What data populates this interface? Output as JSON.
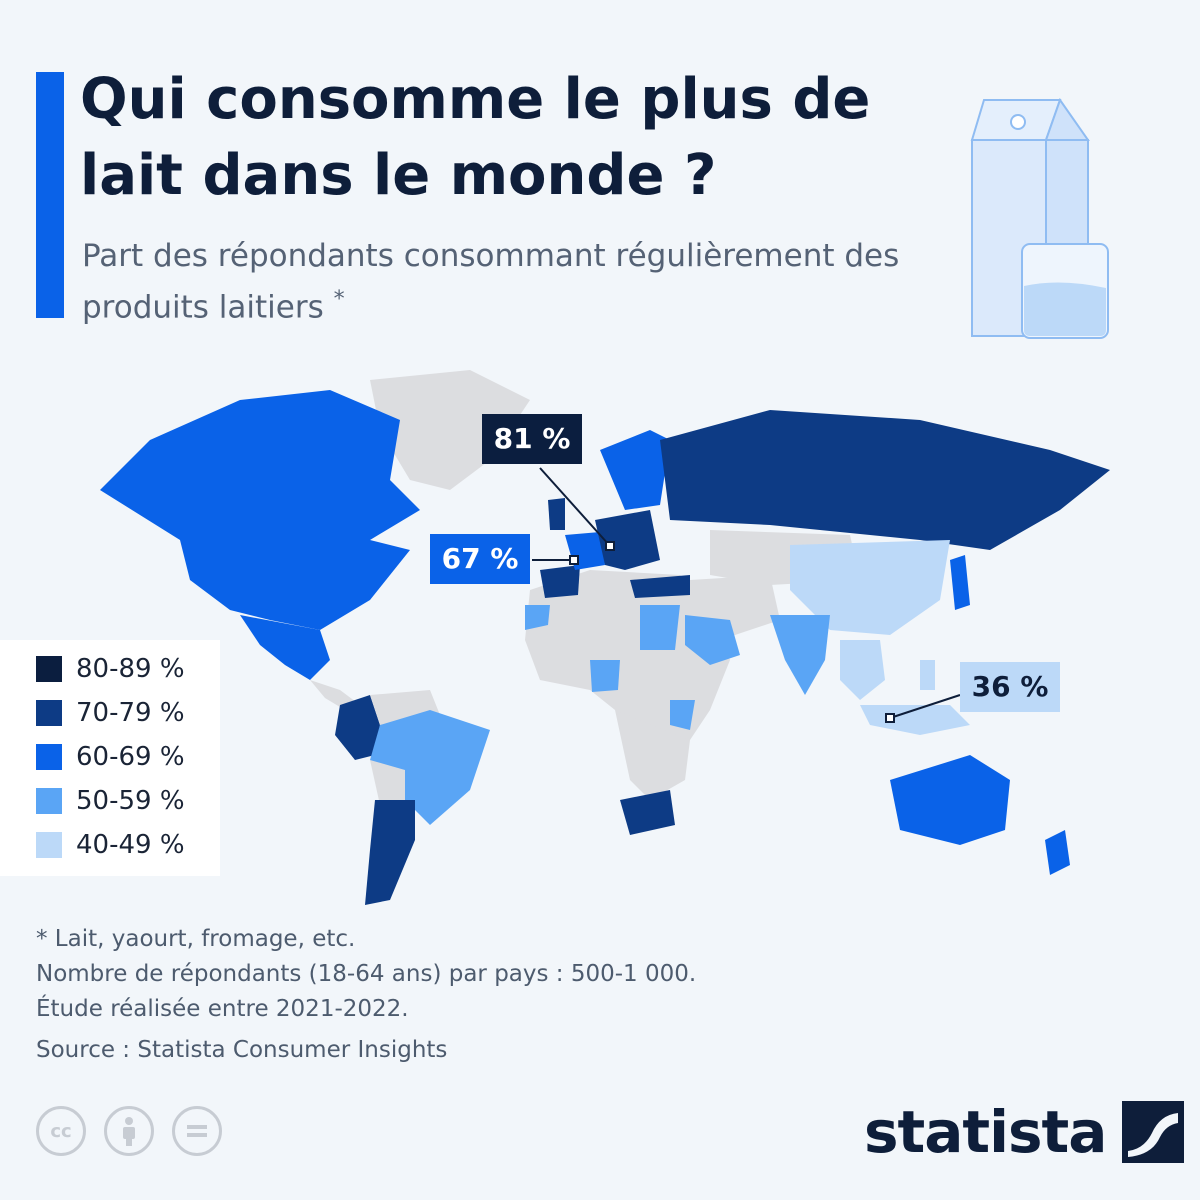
{
  "header": {
    "title": "Qui consomme le plus de lait dans le monde ?",
    "subtitle": "Part des répondants consommant régulièrement des produits laitiers",
    "subtitle_marker": "*"
  },
  "colors": {
    "accent": "#0a62e8",
    "no_data": "#dcdde0",
    "c80_89": "#0b1e3f",
    "c70_79": "#0d3b85",
    "c60_69": "#0a62e8",
    "c50_59": "#5aa5f5",
    "c40_49": "#bcd9f8"
  },
  "legend": {
    "items": [
      {
        "label": "80-89 %",
        "color": "#0b1e3f"
      },
      {
        "label": "70-79 %",
        "color": "#0d3b85"
      },
      {
        "label": "60-69 %",
        "color": "#0a62e8"
      },
      {
        "label": "50-59 %",
        "color": "#5aa5f5"
      },
      {
        "label": "40-49 %",
        "color": "#bcd9f8"
      }
    ]
  },
  "callouts": [
    {
      "label": "81 %",
      "value": 81,
      "color": "#0b1e3f",
      "text_color": "#ffffff"
    },
    {
      "label": "67 %",
      "value": 67,
      "color": "#0a62e8",
      "text_color": "#ffffff"
    },
    {
      "label": "36 %",
      "value": 36,
      "color": "#bcd9f8",
      "text_color": "#0e1e3a"
    }
  ],
  "notes": {
    "line1": "* Lait, yaourt, fromage, etc.",
    "line2": "Nombre de répondants (18-64 ans) par pays : 500-1 000.",
    "line3": "Étude réalisée entre 2021-2022.",
    "source": "Source : Statista Consumer Insights"
  },
  "footer": {
    "logo_text": "statista",
    "cc_icons": [
      "cc-icon",
      "attribution-icon",
      "no-derivatives-icon"
    ]
  },
  "chart_data": {
    "type": "map",
    "legend": [
      "80-89 %",
      "70-79 %",
      "60-69 %",
      "50-59 %",
      "40-49 %"
    ],
    "labels": [
      "81 %",
      "67 %",
      "36 %"
    ],
    "values": [
      81,
      67,
      36
    ]
  }
}
